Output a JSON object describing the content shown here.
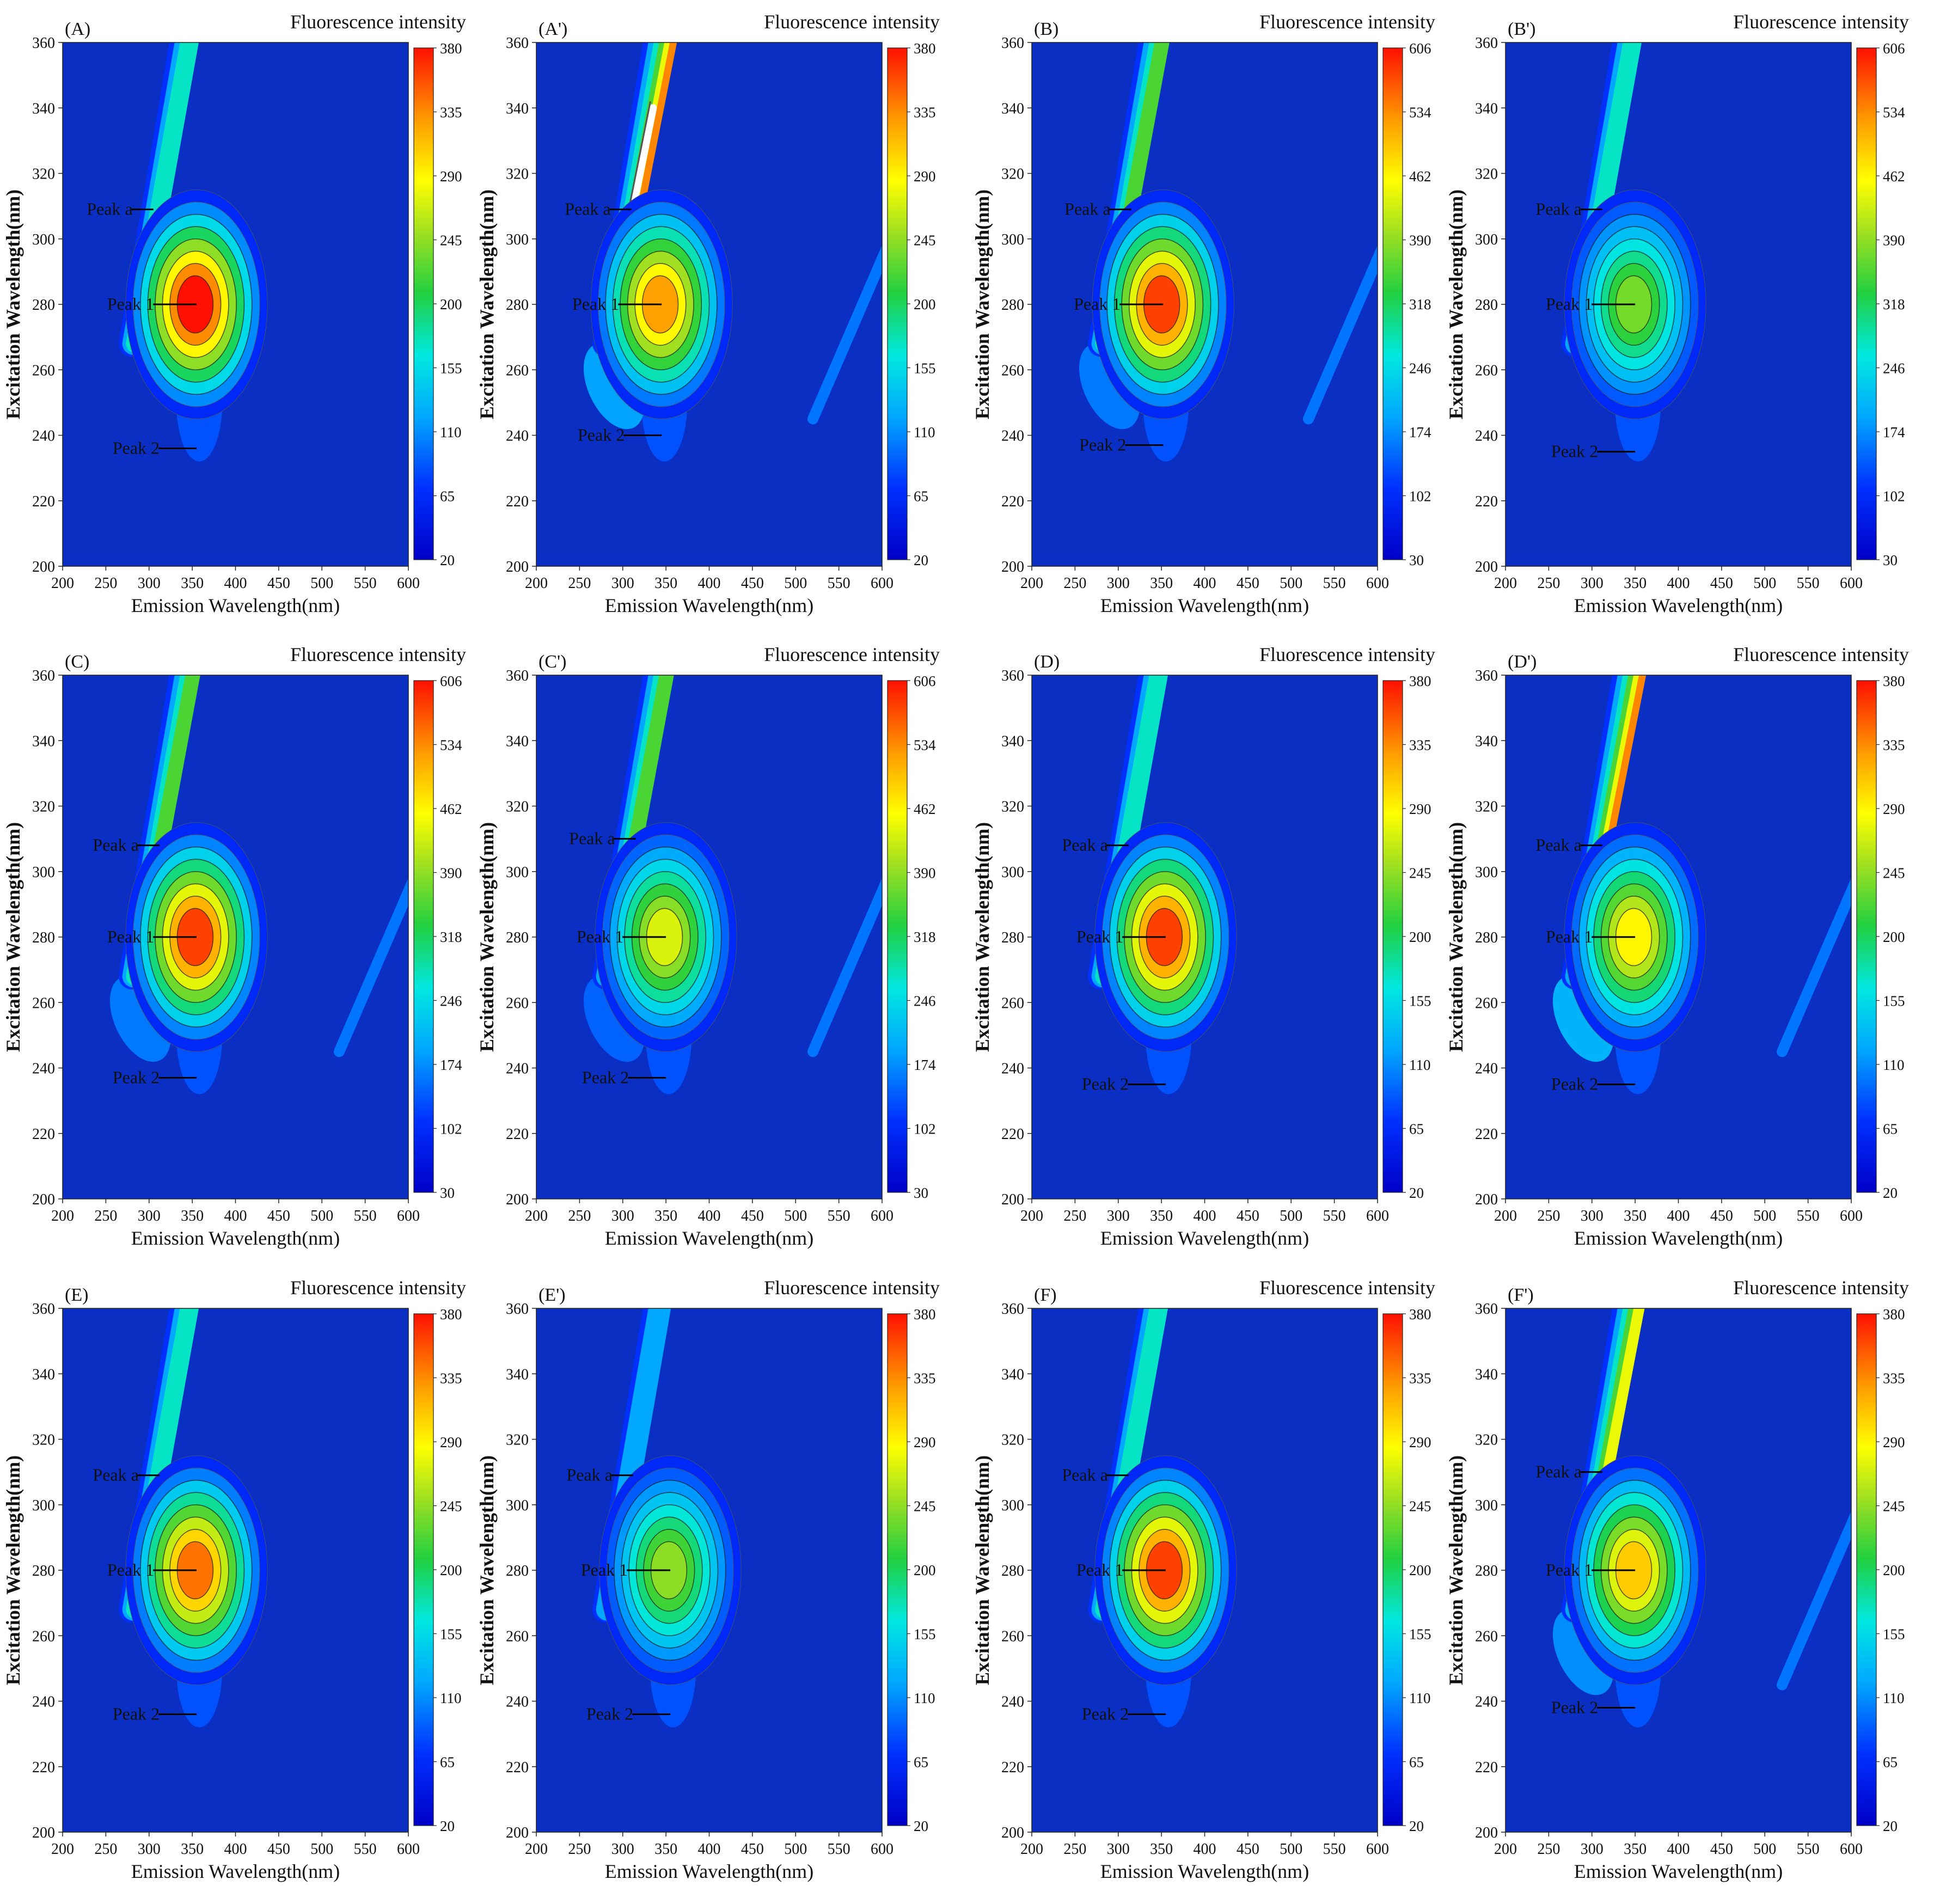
{
  "figure": {
    "common": {
      "xlabel": "Emission Wavelength(nm)",
      "ylabel": "Excitation Wavelength(nm)",
      "colorbar_title": "Fluorescence intensity",
      "x_ticks": [
        "200",
        "250",
        "300",
        "350",
        "400",
        "450",
        "500",
        "550",
        "600"
      ],
      "y_ticks": [
        "200",
        "220",
        "240",
        "260",
        "280",
        "300",
        "320",
        "340",
        "360"
      ],
      "peak_labels": {
        "peak_a": "Peak a",
        "peak_1": "Peak 1",
        "peak_2": "Peak 2"
      },
      "colors": {
        "background": "#0a2fc2",
        "low": "#0000ff",
        "high": "#ff0000"
      }
    }
  },
  "chart_data": [
    {
      "type": "heatmap",
      "panel_label": "(A)",
      "xlim": [
        200,
        600
      ],
      "ylim": [
        200,
        360
      ],
      "colorbar_ticks": [
        "380",
        "335",
        "290",
        "245",
        "200",
        "155",
        "110",
        "65",
        "20"
      ],
      "peaks": {
        "peak_a": {
          "x": 305,
          "y": 309
        },
        "peak_1": {
          "x": 355,
          "y": 280
        },
        "peak_2": {
          "x": 355,
          "y": 236
        }
      }
    },
    {
      "type": "heatmap",
      "panel_label": "(A')",
      "xlim": [
        200,
        600
      ],
      "ylim": [
        200,
        360
      ],
      "colorbar_ticks": [
        "380",
        "335",
        "290",
        "245",
        "200",
        "155",
        "110",
        "65",
        "20"
      ],
      "peaks": {
        "peak_a": {
          "x": 310,
          "y": 309
        },
        "peak_1": {
          "x": 345,
          "y": 280
        },
        "peak_2": {
          "x": 345,
          "y": 240
        }
      }
    },
    {
      "type": "heatmap",
      "panel_label": "(B)",
      "xlim": [
        200,
        600
      ],
      "ylim": [
        200,
        360
      ],
      "colorbar_ticks": [
        "606",
        "534",
        "462",
        "390",
        "318",
        "246",
        "174",
        "102",
        "30"
      ],
      "peaks": {
        "peak_a": {
          "x": 315,
          "y": 309
        },
        "peak_1": {
          "x": 352,
          "y": 280
        },
        "peak_2": {
          "x": 352,
          "y": 237
        }
      }
    },
    {
      "type": "heatmap",
      "panel_label": "(B')",
      "xlim": [
        200,
        600
      ],
      "ylim": [
        200,
        360
      ],
      "colorbar_ticks": [
        "606",
        "534",
        "462",
        "390",
        "318",
        "246",
        "174",
        "102",
        "30"
      ],
      "peaks": {
        "peak_a": {
          "x": 312,
          "y": 309
        },
        "peak_1": {
          "x": 350,
          "y": 280
        },
        "peak_2": {
          "x": 350,
          "y": 235
        }
      }
    },
    {
      "type": "heatmap",
      "panel_label": "(C)",
      "xlim": [
        200,
        600
      ],
      "ylim": [
        200,
        360
      ],
      "colorbar_ticks": [
        "606",
        "534",
        "462",
        "390",
        "318",
        "246",
        "174",
        "102",
        "30"
      ],
      "peaks": {
        "peak_a": {
          "x": 312,
          "y": 308
        },
        "peak_1": {
          "x": 355,
          "y": 280
        },
        "peak_2": {
          "x": 355,
          "y": 237
        }
      }
    },
    {
      "type": "heatmap",
      "panel_label": "(C')",
      "xlim": [
        200,
        600
      ],
      "ylim": [
        200,
        360
      ],
      "colorbar_ticks": [
        "606",
        "534",
        "462",
        "390",
        "318",
        "246",
        "174",
        "102",
        "30"
      ],
      "peaks": {
        "peak_a": {
          "x": 315,
          "y": 310
        },
        "peak_1": {
          "x": 350,
          "y": 280
        },
        "peak_2": {
          "x": 350,
          "y": 237
        }
      }
    },
    {
      "type": "heatmap",
      "panel_label": "(D)",
      "xlim": [
        200,
        600
      ],
      "ylim": [
        200,
        360
      ],
      "colorbar_ticks": [
        "380",
        "335",
        "290",
        "245",
        "200",
        "155",
        "110",
        "65",
        "20"
      ],
      "peaks": {
        "peak_a": {
          "x": 312,
          "y": 308
        },
        "peak_1": {
          "x": 355,
          "y": 280
        },
        "peak_2": {
          "x": 355,
          "y": 235
        }
      }
    },
    {
      "type": "heatmap",
      "panel_label": "(D')",
      "xlim": [
        200,
        600
      ],
      "ylim": [
        200,
        360
      ],
      "colorbar_ticks": [
        "380",
        "335",
        "290",
        "245",
        "200",
        "155",
        "110",
        "65",
        "20"
      ],
      "peaks": {
        "peak_a": {
          "x": 312,
          "y": 308
        },
        "peak_1": {
          "x": 350,
          "y": 280
        },
        "peak_2": {
          "x": 350,
          "y": 235
        }
      }
    },
    {
      "type": "heatmap",
      "panel_label": "(E)",
      "xlim": [
        200,
        600
      ],
      "ylim": [
        200,
        360
      ],
      "colorbar_ticks": [
        "380",
        "335",
        "290",
        "245",
        "200",
        "155",
        "110",
        "65",
        "20"
      ],
      "peaks": {
        "peak_a": {
          "x": 312,
          "y": 309
        },
        "peak_1": {
          "x": 355,
          "y": 280
        },
        "peak_2": {
          "x": 355,
          "y": 236
        }
      }
    },
    {
      "type": "heatmap",
      "panel_label": "(E')",
      "xlim": [
        200,
        600
      ],
      "ylim": [
        200,
        360
      ],
      "colorbar_ticks": [
        "380",
        "335",
        "290",
        "245",
        "200",
        "155",
        "110",
        "65",
        "20"
      ],
      "peaks": {
        "peak_a": {
          "x": 312,
          "y": 309
        },
        "peak_1": {
          "x": 355,
          "y": 280
        },
        "peak_2": {
          "x": 355,
          "y": 236
        }
      }
    },
    {
      "type": "heatmap",
      "panel_label": "(F)",
      "xlim": [
        200,
        600
      ],
      "ylim": [
        200,
        360
      ],
      "colorbar_ticks": [
        "380",
        "335",
        "290",
        "245",
        "200",
        "155",
        "110",
        "65",
        "20"
      ],
      "peaks": {
        "peak_a": {
          "x": 312,
          "y": 309
        },
        "peak_1": {
          "x": 355,
          "y": 280
        },
        "peak_2": {
          "x": 355,
          "y": 236
        }
      }
    },
    {
      "type": "heatmap",
      "panel_label": "(F')",
      "xlim": [
        200,
        600
      ],
      "ylim": [
        200,
        360
      ],
      "colorbar_ticks": [
        "380",
        "335",
        "290",
        "245",
        "200",
        "155",
        "110",
        "65",
        "20"
      ],
      "peaks": {
        "peak_a": {
          "x": 312,
          "y": 310
        },
        "peak_1": {
          "x": 350,
          "y": 280
        },
        "peak_2": {
          "x": 350,
          "y": 238
        }
      }
    }
  ]
}
